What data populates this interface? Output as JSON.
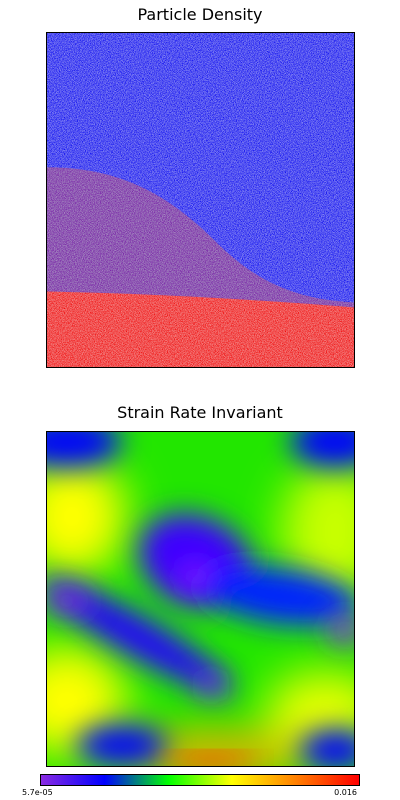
{
  "density_plot": {
    "title": "Particle Density",
    "colors": {
      "upper_material": "#1010f0",
      "intermediate_material": "#7a22a8",
      "lower_material": "#f01010"
    }
  },
  "strain_plot": {
    "title": "Strain Rate Invariant",
    "colorbar": {
      "min_label": "5.7e-05",
      "max_label": "0.016",
      "colors": [
        "#8a2be2",
        "#0000ff",
        "#00ff00",
        "#ffff00",
        "#ff8000",
        "#ff0000"
      ]
    }
  }
}
